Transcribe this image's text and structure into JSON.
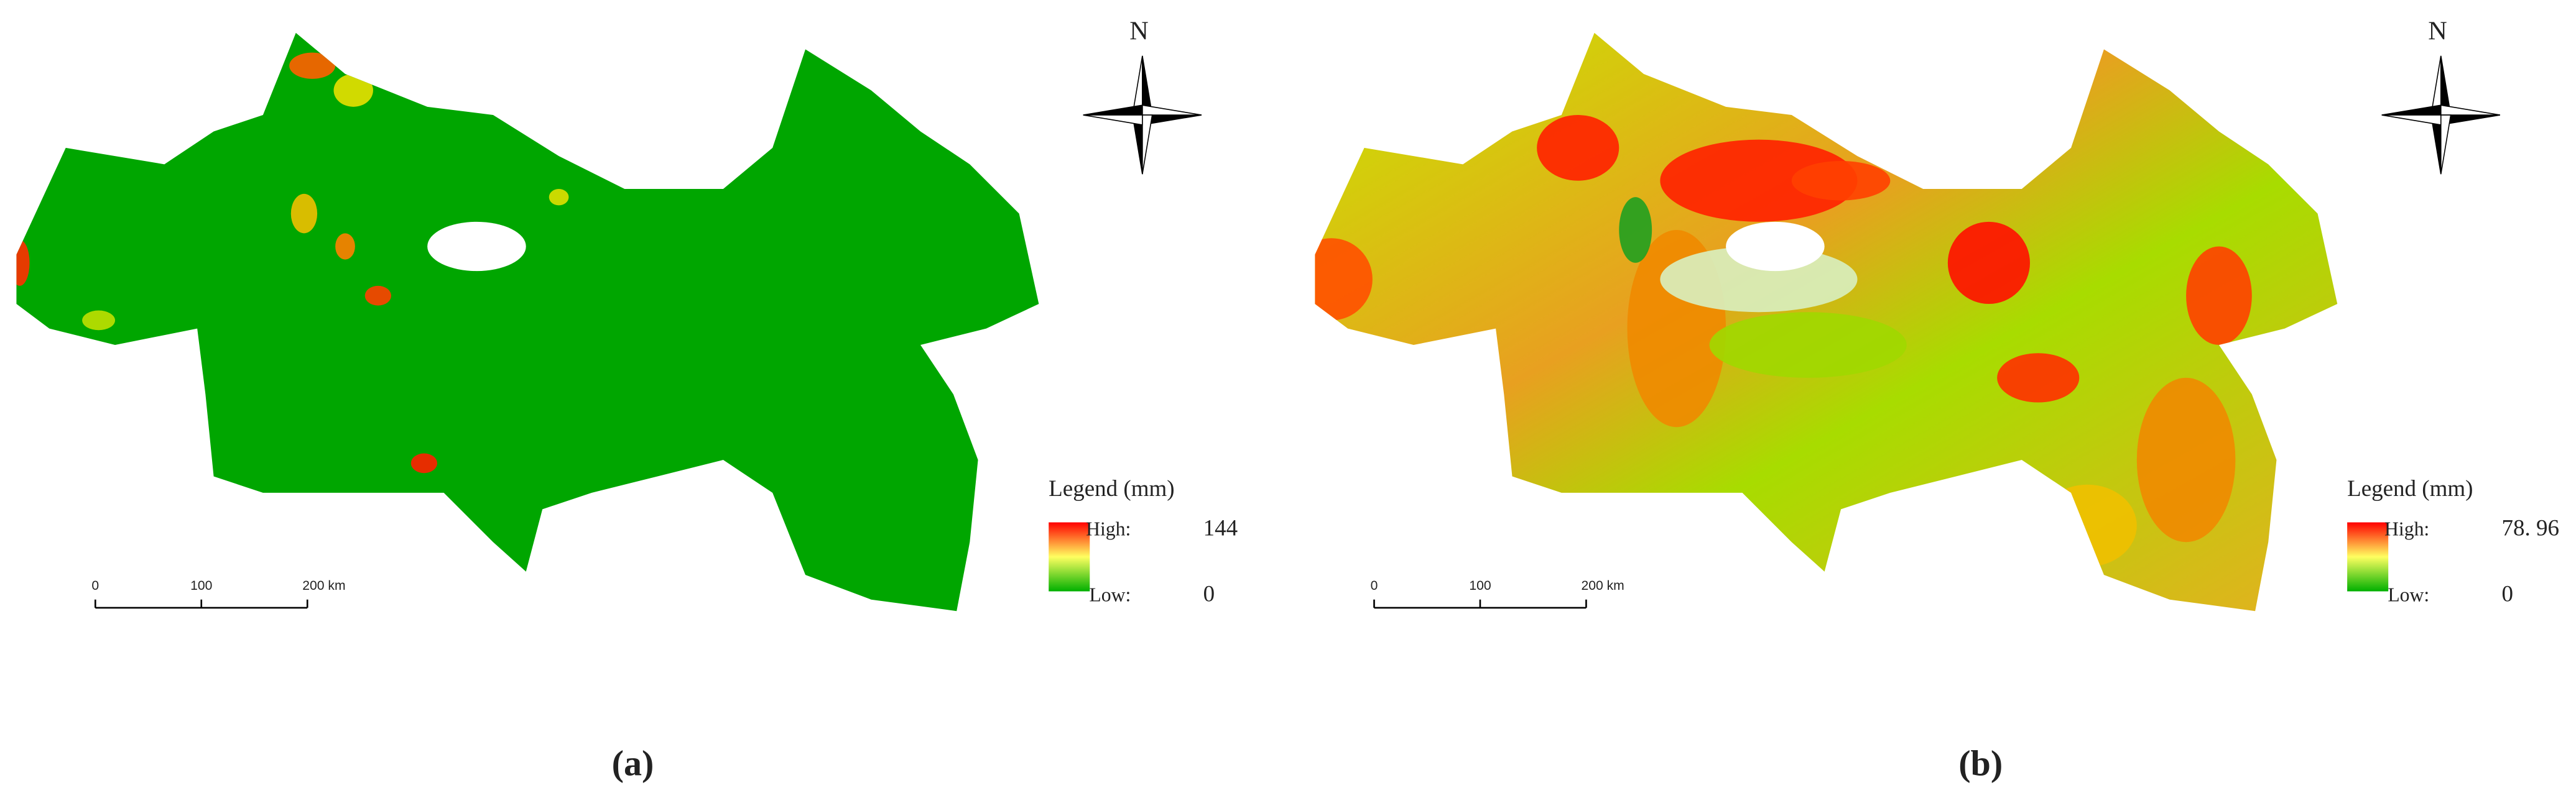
{
  "panels": [
    {
      "label": "(a)",
      "north": "N",
      "legend_title": "Legend (mm)",
      "high_label": "High:",
      "high_value": "144",
      "low_label": "Low:",
      "low_value": "0",
      "scale_ticks": [
        "0",
        "100",
        "200 km"
      ]
    },
    {
      "label": "(b)",
      "north": "N",
      "legend_title": "Legend (mm)",
      "high_label": "High:",
      "high_value": "78. 96",
      "low_label": "Low:",
      "low_value": "0",
      "scale_ticks": [
        "0",
        "100",
        "200 km"
      ]
    }
  ]
}
